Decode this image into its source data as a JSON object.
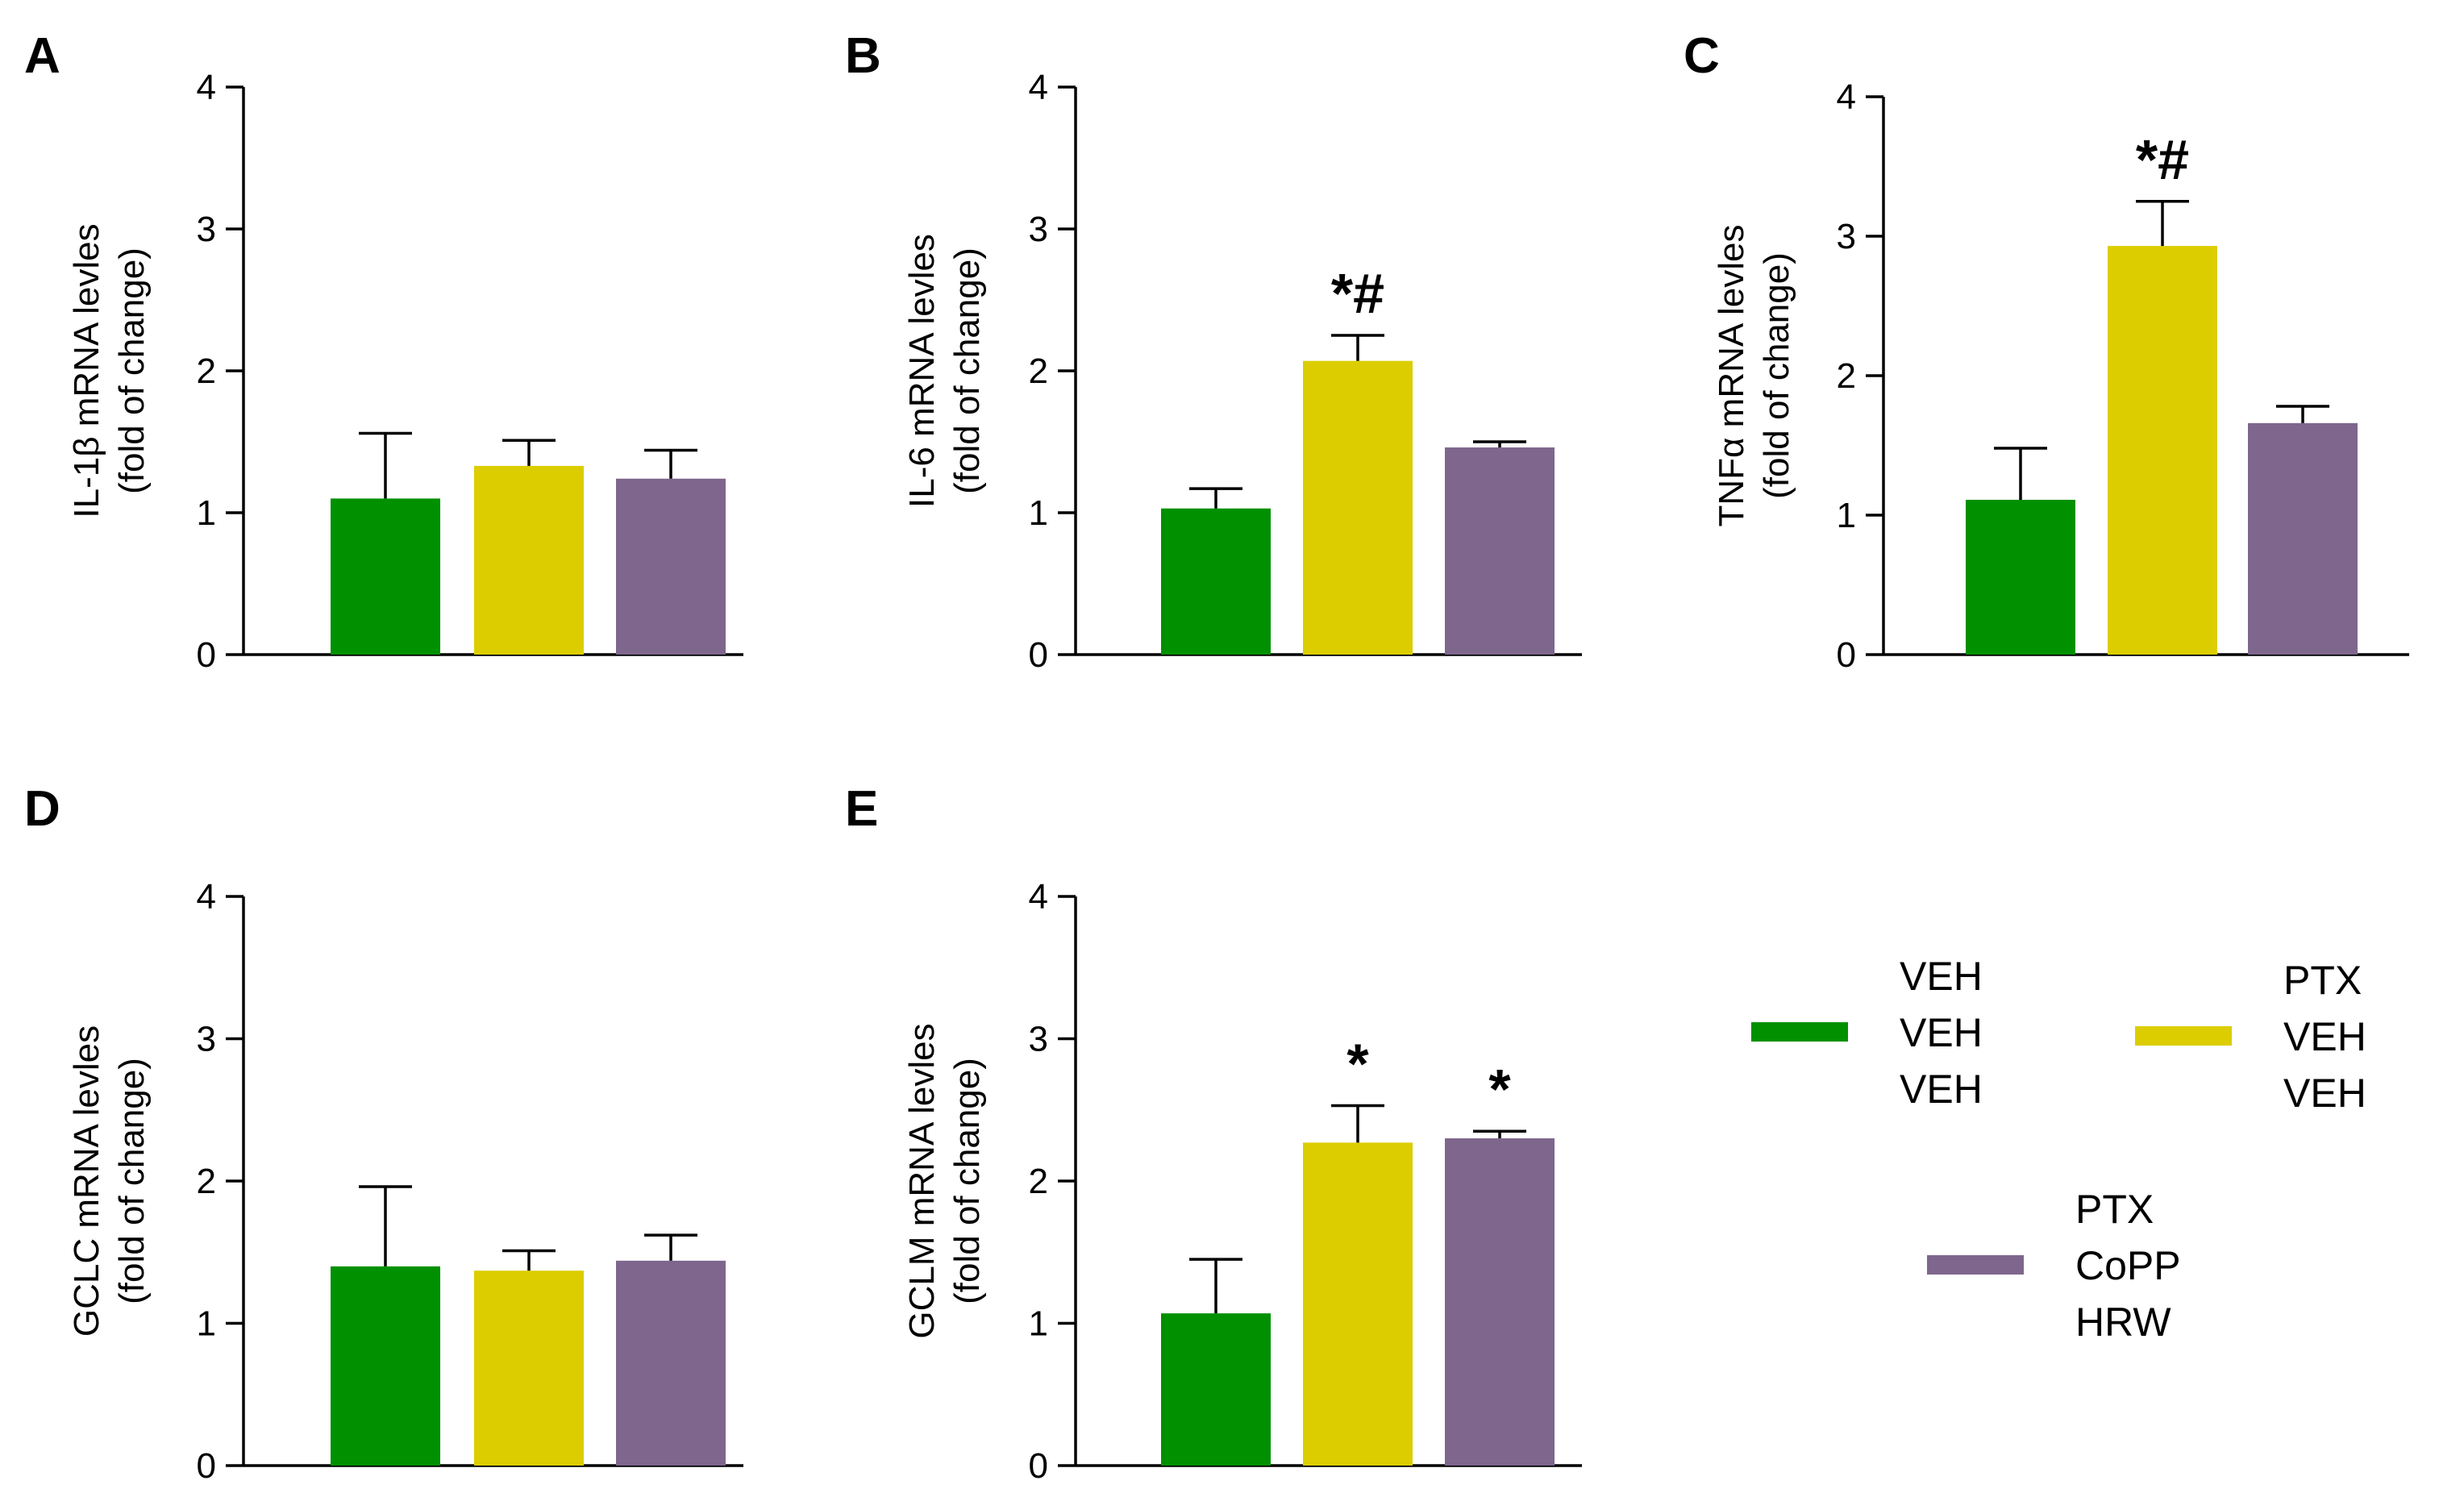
{
  "colors": {
    "veh": "#009000",
    "ptx": "#dccd00",
    "copp": "#7e668d",
    "axis": "#000000"
  },
  "chart_data": [
    {
      "type": "bar",
      "panel": "A",
      "ylabel_line1": "IL-1β mRNA levles",
      "ylabel_line2": "(fold of change)",
      "ylim": [
        0,
        4
      ],
      "yticks": [
        "0",
        "1",
        "2",
        "3",
        "4"
      ],
      "series": [
        {
          "name": "VEH VEH VEH",
          "value": 1.1,
          "error": 0.46,
          "annotation": ""
        },
        {
          "name": "PTX VEH VEH",
          "value": 1.33,
          "error": 0.18,
          "annotation": ""
        },
        {
          "name": "PTX CoPP HRW",
          "value": 1.24,
          "error": 0.2,
          "annotation": ""
        }
      ]
    },
    {
      "type": "bar",
      "panel": "B",
      "ylabel_line1": "IL-6  mRNA levles",
      "ylabel_line2": "(fold of change)",
      "ylim": [
        0,
        4
      ],
      "yticks": [
        "0",
        "1",
        "2",
        "3",
        "4"
      ],
      "series": [
        {
          "name": "VEH VEH VEH",
          "value": 1.03,
          "error": 0.14,
          "annotation": ""
        },
        {
          "name": "PTX VEH VEH",
          "value": 2.07,
          "error": 0.18,
          "annotation": "*#"
        },
        {
          "name": "PTX CoPP HRW",
          "value": 1.46,
          "error": 0.04,
          "annotation": ""
        }
      ]
    },
    {
      "type": "bar",
      "panel": "C",
      "ylabel_line1": "TNFα mRNA levles",
      "ylabel_line2": "(fold of change)",
      "ylim": [
        0,
        4
      ],
      "yticks": [
        "0",
        "1",
        "2",
        "3",
        "4"
      ],
      "series": [
        {
          "name": "VEH VEH VEH",
          "value": 1.11,
          "error": 0.37,
          "annotation": ""
        },
        {
          "name": "PTX VEH VEH",
          "value": 2.93,
          "error": 0.32,
          "annotation": "*#"
        },
        {
          "name": "PTX CoPP HRW",
          "value": 1.66,
          "error": 0.12,
          "annotation": ""
        }
      ]
    },
    {
      "type": "bar",
      "panel": "D",
      "ylabel_line1": "GCLC mRNA levles",
      "ylabel_line2": "(fold of change)",
      "ylim": [
        0,
        4
      ],
      "yticks": [
        "0",
        "1",
        "2",
        "3",
        "4"
      ],
      "series": [
        {
          "name": "VEH VEH VEH",
          "value": 1.4,
          "error": 0.56,
          "annotation": ""
        },
        {
          "name": "PTX VEH VEH",
          "value": 1.37,
          "error": 0.14,
          "annotation": ""
        },
        {
          "name": "PTX CoPP HRW",
          "value": 1.44,
          "error": 0.18,
          "annotation": ""
        }
      ]
    },
    {
      "type": "bar",
      "panel": "E",
      "ylabel_line1": "GCLM mRNA levles",
      "ylabel_line2": "(fold of change)",
      "ylim": [
        0,
        4
      ],
      "yticks": [
        "0",
        "1",
        "2",
        "3",
        "4"
      ],
      "series": [
        {
          "name": "VEH VEH VEH",
          "value": 1.07,
          "error": 0.38,
          "annotation": ""
        },
        {
          "name": "PTX VEH VEH",
          "value": 2.27,
          "error": 0.26,
          "annotation": "*"
        },
        {
          "name": "PTX CoPP HRW",
          "value": 2.3,
          "error": 0.05,
          "annotation": "*"
        }
      ]
    }
  ],
  "legend": [
    {
      "lines": [
        "VEH",
        "VEH",
        "VEH"
      ],
      "color_key": "veh"
    },
    {
      "lines": [
        "PTX",
        "VEH",
        "VEH"
      ],
      "color_key": "ptx"
    },
    {
      "lines": [
        "PTX",
        "CoPP",
        "HRW"
      ],
      "color_key": "copp"
    }
  ]
}
